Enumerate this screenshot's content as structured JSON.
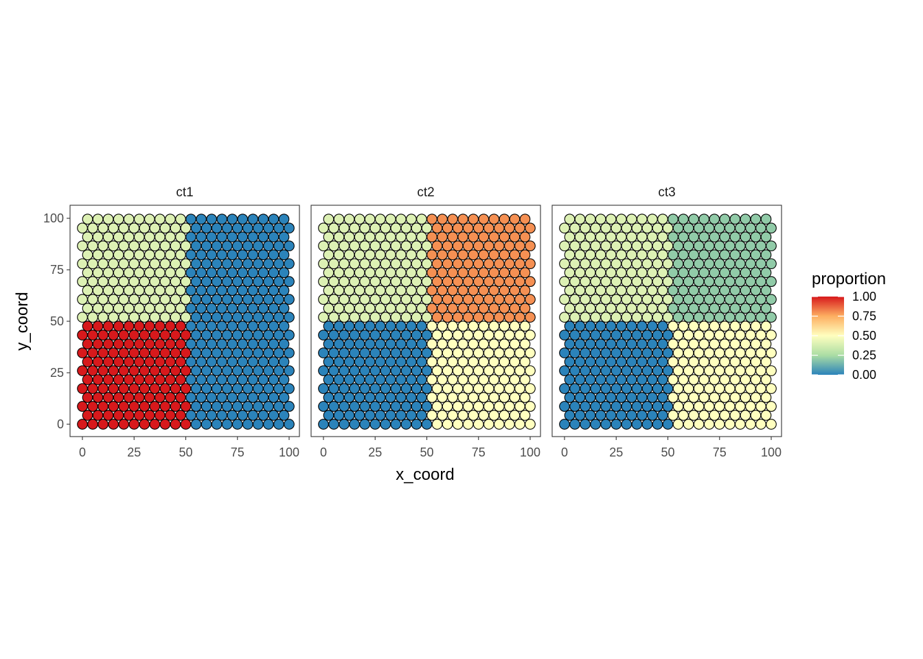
{
  "chart_data": {
    "type": "scatter",
    "xlabel": "x_coord",
    "ylabel": "y_coord",
    "xlim": [
      0,
      100
    ],
    "ylim": [
      0,
      100
    ],
    "xticks": [
      0,
      25,
      50,
      75,
      100
    ],
    "yticks": [
      0,
      25,
      50,
      75,
      100
    ],
    "tick_labels": [
      "0",
      "25",
      "50",
      "75",
      "100"
    ],
    "legend": {
      "title": "proportion",
      "placement": "right",
      "range": [
        0,
        1
      ],
      "ticks": [
        "0.00",
        "0.25",
        "0.50",
        "0.75",
        "1.00"
      ],
      "palette": [
        "#2B83BA",
        "#ABDDA4",
        "#FFFFBF",
        "#FDAE61",
        "#D7191C"
      ]
    },
    "grid": false,
    "spot_grid": {
      "layout": "hexagonal",
      "rows": 24,
      "even_row_x": [
        0,
        5,
        10,
        15,
        20,
        25,
        30,
        35,
        40,
        45,
        50,
        55,
        60,
        65,
        70,
        75,
        80,
        85,
        90,
        95,
        100
      ],
      "odd_row_x": [
        2.5,
        7.5,
        12.5,
        17.5,
        22.5,
        27.5,
        32.5,
        37.5,
        42.5,
        47.5,
        52.5,
        57.5,
        62.5,
        67.5,
        72.5,
        77.5,
        82.5,
        87.5,
        92.5,
        97.5
      ],
      "y_step": 4.33
    },
    "panels": [
      {
        "name": "ct1",
        "regions": {
          "top_left": 0.4,
          "top_right": 0.0,
          "bottom_left": 1.0,
          "bottom_right": 0.0
        }
      },
      {
        "name": "ct2",
        "regions": {
          "top_left": 0.4,
          "top_right": 0.8,
          "bottom_left": 0.0,
          "bottom_right": 0.5
        }
      },
      {
        "name": "ct3",
        "regions": {
          "top_left": 0.4,
          "top_right": 0.2,
          "bottom_left": 0.0,
          "bottom_right": 0.5
        }
      }
    ]
  }
}
